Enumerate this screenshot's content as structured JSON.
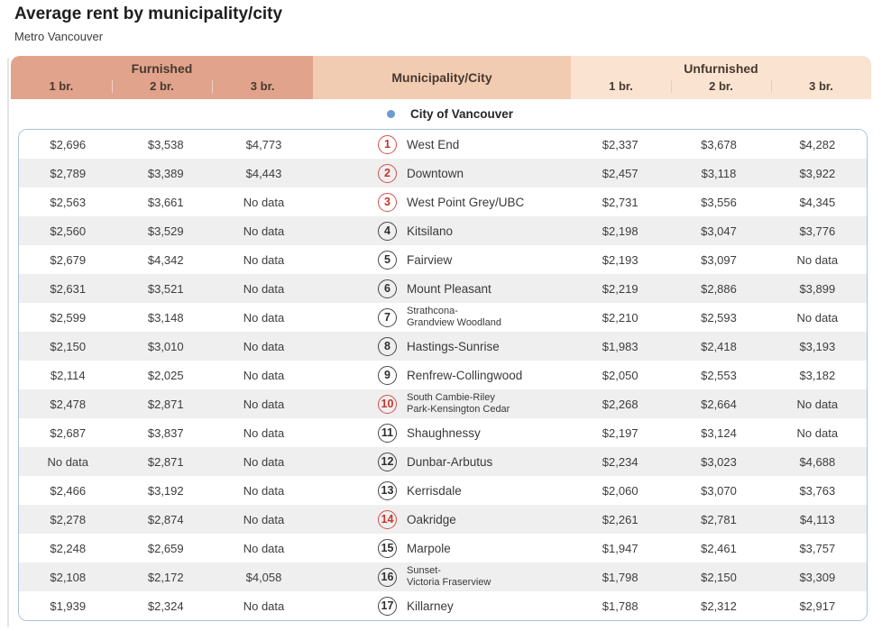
{
  "chart_data": {
    "type": "table",
    "title": "Average rent by municipality/city",
    "subtitle": "Metro Vancouver",
    "column_groups": {
      "furnished": "Furnished",
      "municipality": "Municipality/City",
      "unfurnished": "Unfurnished"
    },
    "sub_columns": [
      "1 br.",
      "2 br.",
      "3 br."
    ],
    "group_header": "City of Vancouver",
    "rows": [
      {
        "num": "1",
        "accent": "red",
        "name_lines": [
          "West End"
        ],
        "furnished": [
          "$2,696",
          "$3,538",
          "$4,773"
        ],
        "unfurnished": [
          "$2,337",
          "$3,678",
          "$4,282"
        ]
      },
      {
        "num": "2",
        "accent": "red",
        "name_lines": [
          "Downtown"
        ],
        "furnished": [
          "$2,789",
          "$3,389",
          "$4,443"
        ],
        "unfurnished": [
          "$2,457",
          "$3,118",
          "$3,922"
        ]
      },
      {
        "num": "3",
        "accent": "red",
        "name_lines": [
          "West Point Grey/UBC"
        ],
        "furnished": [
          "$2,563",
          "$3,661",
          "No data"
        ],
        "unfurnished": [
          "$2,731",
          "$3,556",
          "$4,345"
        ]
      },
      {
        "num": "4",
        "accent": "dark",
        "name_lines": [
          "Kitsilano"
        ],
        "furnished": [
          "$2,560",
          "$3,529",
          "No data"
        ],
        "unfurnished": [
          "$2,198",
          "$3,047",
          "$3,776"
        ]
      },
      {
        "num": "5",
        "accent": "dark",
        "name_lines": [
          "Fairview"
        ],
        "furnished": [
          "$2,679",
          "$4,342",
          "No data"
        ],
        "unfurnished": [
          "$2,193",
          "$3,097",
          "No data"
        ]
      },
      {
        "num": "6",
        "accent": "dark",
        "name_lines": [
          "Mount Pleasant"
        ],
        "furnished": [
          "$2,631",
          "$3,521",
          "No data"
        ],
        "unfurnished": [
          "$2,219",
          "$2,886",
          "$3,899"
        ]
      },
      {
        "num": "7",
        "accent": "dark",
        "name_lines": [
          "Strathcona-",
          "Grandview Woodland"
        ],
        "furnished": [
          "$2,599",
          "$3,148",
          "No data"
        ],
        "unfurnished": [
          "$2,210",
          "$2,593",
          "No data"
        ]
      },
      {
        "num": "8",
        "accent": "dark",
        "name_lines": [
          "Hastings-Sunrise"
        ],
        "furnished": [
          "$2,150",
          "$3,010",
          "No data"
        ],
        "unfurnished": [
          "$1,983",
          "$2,418",
          "$3,193"
        ]
      },
      {
        "num": "9",
        "accent": "dark",
        "name_lines": [
          "Renfrew-Collingwood"
        ],
        "furnished": [
          "$2,114",
          "$2,025",
          "No data"
        ],
        "unfurnished": [
          "$2,050",
          "$2,553",
          "$3,182"
        ]
      },
      {
        "num": "10",
        "accent": "red",
        "name_lines": [
          "South Cambie-Riley",
          "Park-Kensington Cedar"
        ],
        "furnished": [
          "$2,478",
          "$2,871",
          "No data"
        ],
        "unfurnished": [
          "$2,268",
          "$2,664",
          "No data"
        ]
      },
      {
        "num": "11",
        "accent": "dark",
        "name_lines": [
          "Shaughnessy"
        ],
        "furnished": [
          "$2,687",
          "$3,837",
          "No data"
        ],
        "unfurnished": [
          "$2,197",
          "$3,124",
          "No data"
        ]
      },
      {
        "num": "12",
        "accent": "dark",
        "name_lines": [
          "Dunbar-Arbutus"
        ],
        "furnished": [
          "No data",
          "$2,871",
          "No data"
        ],
        "unfurnished": [
          "$2,234",
          "$3,023",
          "$4,688"
        ]
      },
      {
        "num": "13",
        "accent": "dark",
        "name_lines": [
          "Kerrisdale"
        ],
        "furnished": [
          "$2,466",
          "$3,192",
          "No data"
        ],
        "unfurnished": [
          "$2,060",
          "$3,070",
          "$3,763"
        ]
      },
      {
        "num": "14",
        "accent": "red",
        "name_lines": [
          "Oakridge"
        ],
        "furnished": [
          "$2,278",
          "$2,874",
          "No data"
        ],
        "unfurnished": [
          "$2,261",
          "$2,781",
          "$4,113"
        ]
      },
      {
        "num": "15",
        "accent": "dark",
        "name_lines": [
          "Marpole"
        ],
        "furnished": [
          "$2,248",
          "$2,659",
          "No data"
        ],
        "unfurnished": [
          "$1,947",
          "$2,461",
          "$3,757"
        ]
      },
      {
        "num": "16",
        "accent": "dark",
        "name_lines": [
          "Sunset-",
          "Victoria Fraserview"
        ],
        "furnished": [
          "$2,108",
          "$2,172",
          "$4,058"
        ],
        "unfurnished": [
          "$1,798",
          "$2,150",
          "$3,309"
        ]
      },
      {
        "num": "17",
        "accent": "dark",
        "name_lines": [
          "Killarney"
        ],
        "furnished": [
          "$1,939",
          "$2,324",
          "No data"
        ],
        "unfurnished": [
          "$1,788",
          "$2,312",
          "$2,917"
        ]
      }
    ]
  },
  "colors": {
    "furnished_header": "#e1a38c",
    "municipality_header": "#f2ccb2",
    "unfurnished_header": "#fbe3d1",
    "row_stripe": "#efefef",
    "body_border_blue": "#a9c2de",
    "accent_red": "#c4352e",
    "circle_dark": "#464646",
    "bullet_blue": "#6c9bd2"
  }
}
